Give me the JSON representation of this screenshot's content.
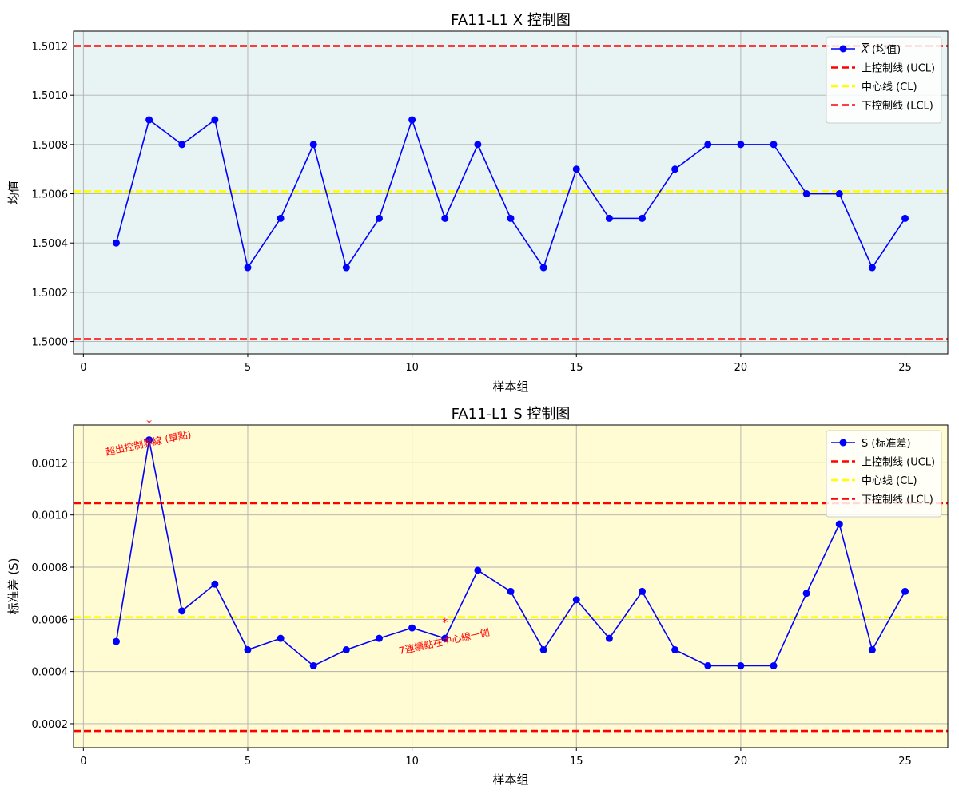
{
  "colors": {
    "xbar_bg": "#e8f4f4",
    "s_bg": "#fffbd2",
    "series": "#0000ff",
    "ucl": "#ff0000",
    "cl": "#ffff00",
    "lcl": "#ff0000",
    "grid": "#b0b0b0",
    "annotation": "#ff0000"
  },
  "chart_data": [
    {
      "type": "line",
      "title": "FA11-L1 X 控制图",
      "xlabel": "样本组",
      "ylabel": "均值",
      "xlim": [
        -0.3,
        26.3
      ],
      "ylim": [
        1.49995,
        1.50126
      ],
      "xticks": [
        0,
        5,
        10,
        15,
        20,
        25
      ],
      "yticks": [
        1.5,
        1.5002,
        1.5004,
        1.5006,
        1.5008,
        1.501,
        1.5012
      ],
      "ytick_labels": [
        "1.5000",
        "1.5002",
        "1.5004",
        "1.5006",
        "1.5008",
        "1.5010",
        "1.5012"
      ],
      "grid": true,
      "legend_position": "top-right",
      "x": [
        1,
        2,
        3,
        4,
        5,
        6,
        7,
        8,
        9,
        10,
        11,
        12,
        13,
        14,
        15,
        16,
        17,
        18,
        19,
        20,
        21,
        22,
        23,
        24,
        25
      ],
      "series": [
        {
          "name": "X (均值)",
          "overline_prefix": "X",
          "name_suffix": " (均值)",
          "values": [
            1.5004,
            1.5009,
            1.5008,
            1.5009,
            1.5003,
            1.5005,
            1.5008,
            1.5003,
            1.5005,
            1.5009,
            1.5005,
            1.5008,
            1.5005,
            1.5003,
            1.5007,
            1.5005,
            1.5005,
            1.5007,
            1.5008,
            1.5008,
            1.5008,
            1.5006,
            1.5006,
            1.5003,
            1.5005
          ]
        }
      ],
      "control_lines": [
        {
          "name": "上控制线 (UCL)",
          "value": 1.5012,
          "color_key": "ucl"
        },
        {
          "name": "中心线 (CL)",
          "value": 1.50061,
          "color_key": "cl"
        },
        {
          "name": "下控制线 (LCL)",
          "value": 1.50001,
          "color_key": "lcl"
        }
      ],
      "annotations": []
    },
    {
      "type": "line",
      "title": "FA11-L1 S 控制图",
      "xlabel": "样本组",
      "ylabel": "标准差 (S)",
      "xlim": [
        -0.3,
        26.3
      ],
      "ylim": [
        0.000108,
        0.001345
      ],
      "xticks": [
        0,
        5,
        10,
        15,
        20,
        25
      ],
      "yticks": [
        0.0002,
        0.0004,
        0.0006,
        0.0008,
        0.001,
        0.0012
      ],
      "ytick_labels": [
        "0.0002",
        "0.0004",
        "0.0006",
        "0.0008",
        "0.0010",
        "0.0012"
      ],
      "grid": true,
      "legend_position": "top-right",
      "x": [
        1,
        2,
        3,
        4,
        5,
        6,
        7,
        8,
        9,
        10,
        11,
        12,
        13,
        14,
        15,
        16,
        17,
        18,
        19,
        20,
        21,
        22,
        23,
        24,
        25
      ],
      "series": [
        {
          "name": "S (标准差)",
          "values": [
            0.000515,
            0.001288,
            0.000632,
            0.000735,
            0.000483,
            0.000527,
            0.000422,
            0.000483,
            0.000527,
            0.000567,
            0.000527,
            0.000788,
            0.000707,
            0.000483,
            0.000675,
            0.000527,
            0.000707,
            0.000483,
            0.000422,
            0.000422,
            0.000422,
            0.0007,
            0.000965,
            0.000483,
            0.000707
          ]
        }
      ],
      "control_lines": [
        {
          "name": "上控制线 (UCL)",
          "value": 0.001045,
          "color_key": "ucl"
        },
        {
          "name": "中心线 (CL)",
          "value": 0.000608,
          "color_key": "cl"
        },
        {
          "name": "下控制线 (LCL)",
          "value": 0.000172,
          "color_key": "lcl"
        }
      ],
      "annotations": [
        {
          "x": 2,
          "y": 0.001288,
          "marker": "*",
          "text": "超出控制界線 (單點)"
        },
        {
          "x": 11,
          "y": 0.000527,
          "marker": "*",
          "text": "7連續點在中心線一側"
        }
      ]
    }
  ]
}
